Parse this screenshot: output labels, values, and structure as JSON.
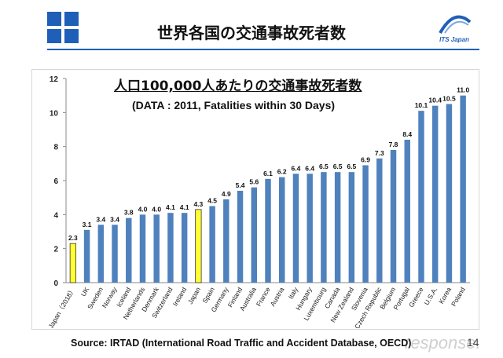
{
  "header": {
    "title": "世界各国の交通事故死者数",
    "brand": "ITS Japan"
  },
  "chart_data": {
    "type": "bar",
    "title": "人口100,000人あたりの交通事故死者数",
    "subtitle": "(DATA : 2011, Fatalities within 30 Days)",
    "categories": [
      "Japan（2018）",
      "UK",
      "Sweden",
      "Norway",
      "Iceland",
      "Netherlands",
      "Denmark",
      "Switzerland",
      "Ireland",
      "Japan",
      "Spain",
      "Germany",
      "Finland",
      "Australia",
      "France",
      "Austria",
      "Italy",
      "Hungary",
      "Luxembourg",
      "Canada",
      "New Zealand",
      "Slovenia",
      "Czech Republic",
      "Belgium",
      "Portugal",
      "Greece",
      "U.S.A.",
      "Korea",
      "Poland"
    ],
    "values": [
      2.3,
      3.1,
      3.4,
      3.4,
      3.8,
      4.0,
      4.0,
      4.1,
      4.1,
      4.3,
      4.5,
      4.9,
      5.4,
      5.6,
      6.1,
      6.2,
      6.4,
      6.4,
      6.5,
      6.5,
      6.5,
      6.9,
      7.3,
      7.8,
      8.4,
      10.1,
      10.4,
      10.5,
      11.0
    ],
    "value_labels": [
      "2.3",
      "3.1",
      "3.4",
      "3.4",
      "3.8",
      "4.0",
      "4.0",
      "4.1",
      "4.1",
      "4.3",
      "4.5",
      "4.9",
      "5.4",
      "5.6",
      "6.1",
      "6.2",
      "6.4",
      "6.4",
      "6.5",
      "6.5",
      "6.5",
      "6.9",
      "7.3",
      "7.8",
      "8.4",
      "10.1",
      "10.4",
      "10.5",
      "11.0"
    ],
    "highlight": [
      "Japan（2018）",
      "Japan"
    ],
    "colors": {
      "bar": "#4f81bd",
      "highlight": "#ffff33",
      "highlight_stroke": "#333333"
    },
    "ylim": [
      0,
      12
    ],
    "yticks": [
      "0",
      "2",
      "4",
      "6",
      "8",
      "10",
      "12"
    ],
    "grid": false,
    "legend": "none"
  },
  "footer": {
    "source": "Source: IRTAD (International Road Traffic and Accident Database, OECD)",
    "page": "14",
    "watermark": "response."
  }
}
